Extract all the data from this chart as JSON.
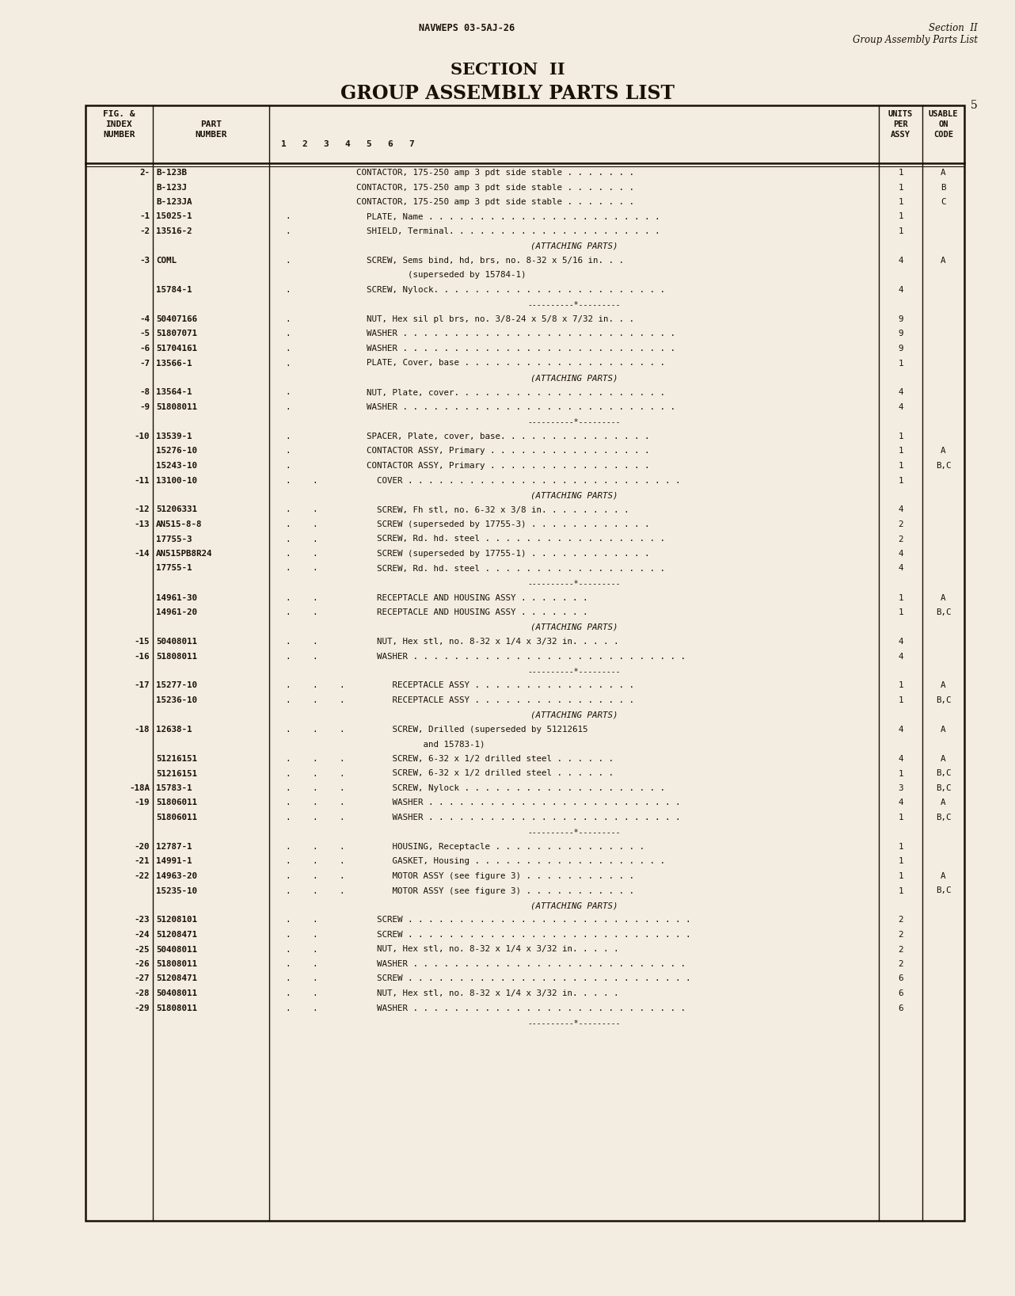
{
  "bg_color": "#f2ede0",
  "text_color": "#1a1005",
  "header_left": "NAVWEPS 03-5AJ-26",
  "header_right_line1": "Section  II",
  "header_right_line2": "Group Assembly Parts List",
  "title_line1": "SECTION  II",
  "title_line2": "GROUP ASSEMBLY PARTS LIST",
  "page_number": "5",
  "rows": [
    {
      "index": "2-",
      "part": "B-123B",
      "dot1": "",
      "dot2": "",
      "dot3": "",
      "description": "CONTACTOR, 175-250 amp 3 pdt side stable . . . . . . .",
      "units": "1",
      "code": "A"
    },
    {
      "index": "",
      "part": "B-123J",
      "dot1": "",
      "dot2": "",
      "dot3": "",
      "description": "CONTACTOR, 175-250 amp 3 pdt side stable . . . . . . .",
      "units": "1",
      "code": "B"
    },
    {
      "index": "",
      "part": "B-123JA",
      "dot1": "",
      "dot2": "",
      "dot3": "",
      "description": "CONTACTOR, 175-250 amp 3 pdt side stable . . . . . . .",
      "units": "1",
      "code": "C"
    },
    {
      "index": "-1",
      "part": "15025-1",
      "dot1": ".",
      "dot2": "",
      "dot3": "",
      "description": "  PLATE, Name . . . . . . . . . . . . . . . . . . . . . . .",
      "units": "1",
      "code": ""
    },
    {
      "index": "-2",
      "part": "13516-2",
      "dot1": ".",
      "dot2": "",
      "dot3": "",
      "description": "  SHIELD, Terminal. . . . . . . . . . . . . . . . . . . . .",
      "units": "1",
      "code": ""
    },
    {
      "index": "",
      "part": "",
      "dot1": "",
      "dot2": "",
      "dot3": "",
      "description": "(ATTACHING PARTS)",
      "units": "",
      "code": "",
      "center": true
    },
    {
      "index": "-3",
      "part": "COML",
      "dot1": ".",
      "dot2": "",
      "dot3": "",
      "description": "  SCREW, Sems bind, hd, brs, no. 8-32 x 5/16 in. . .",
      "units": "4",
      "code": "A"
    },
    {
      "index": "",
      "part": "",
      "dot1": "",
      "dot2": "",
      "dot3": "",
      "description": "          (superseded by 15784-1)",
      "units": "",
      "code": ""
    },
    {
      "index": "",
      "part": "15784-1",
      "dot1": ".",
      "dot2": "",
      "dot3": "",
      "description": "  SCREW, Nylock. . . . . . . . . . . . . . . . . . . . . . .",
      "units": "4",
      "code": ""
    },
    {
      "index": "",
      "part": "",
      "dot1": "",
      "dot2": "",
      "dot3": "",
      "description": "",
      "units": "",
      "code": "",
      "separator": true
    },
    {
      "index": "-4",
      "part": "50407166",
      "dot1": ".",
      "dot2": "",
      "dot3": "",
      "description": "  NUT, Hex sil pl brs, no. 3/8-24 x 5/8 x 7/32 in. . .",
      "units": "9",
      "code": ""
    },
    {
      "index": "-5",
      "part": "51807071",
      "dot1": ".",
      "dot2": "",
      "dot3": "",
      "description": "  WASHER . . . . . . . . . . . . . . . . . . . . . . . . . . .",
      "units": "9",
      "code": ""
    },
    {
      "index": "-6",
      "part": "51704161",
      "dot1": ".",
      "dot2": "",
      "dot3": "",
      "description": "  WASHER . . . . . . . . . . . . . . . . . . . . . . . . . . .",
      "units": "9",
      "code": ""
    },
    {
      "index": "-7",
      "part": "13566-1",
      "dot1": ".",
      "dot2": "",
      "dot3": "",
      "description": "  PLATE, Cover, base . . . . . . . . . . . . . . . . . . . .",
      "units": "1",
      "code": ""
    },
    {
      "index": "",
      "part": "",
      "dot1": "",
      "dot2": "",
      "dot3": "",
      "description": "(ATTACHING PARTS)",
      "units": "",
      "code": "",
      "center": true
    },
    {
      "index": "-8",
      "part": "13564-1",
      "dot1": ".",
      "dot2": "",
      "dot3": "",
      "description": "  NUT, Plate, cover. . . . . . . . . . . . . . . . . . . . .",
      "units": "4",
      "code": ""
    },
    {
      "index": "-9",
      "part": "51808011",
      "dot1": ".",
      "dot2": "",
      "dot3": "",
      "description": "  WASHER . . . . . . . . . . . . . . . . . . . . . . . . . . .",
      "units": "4",
      "code": ""
    },
    {
      "index": "",
      "part": "",
      "dot1": "",
      "dot2": "",
      "dot3": "",
      "description": "",
      "units": "",
      "code": "",
      "separator": true
    },
    {
      "index": "-10",
      "part": "13539-1",
      "dot1": ".",
      "dot2": "",
      "dot3": "",
      "description": "  SPACER, Plate, cover, base. . . . . . . . . . . . . . .",
      "units": "1",
      "code": ""
    },
    {
      "index": "",
      "part": "15276-10",
      "dot1": ".",
      "dot2": "",
      "dot3": "",
      "description": "  CONTACTOR ASSY, Primary . . . . . . . . . . . . . . . .",
      "units": "1",
      "code": "A"
    },
    {
      "index": "",
      "part": "15243-10",
      "dot1": ".",
      "dot2": "",
      "dot3": "",
      "description": "  CONTACTOR ASSY, Primary . . . . . . . . . . . . . . . .",
      "units": "1",
      "code": "B,C"
    },
    {
      "index": "-11",
      "part": "13100-10",
      "dot1": ".",
      "dot2": ".",
      "dot3": "",
      "description": "    COVER . . . . . . . . . . . . . . . . . . . . . . . . . . .",
      "units": "1",
      "code": ""
    },
    {
      "index": "",
      "part": "",
      "dot1": "",
      "dot2": "",
      "dot3": "",
      "description": "(ATTACHING PARTS)",
      "units": "",
      "code": "",
      "center": true
    },
    {
      "index": "-12",
      "part": "51206331",
      "dot1": ".",
      "dot2": ".",
      "dot3": "",
      "description": "    SCREW, Fh stl, no. 6-32 x 3/8 in. . . . . . . . .",
      "units": "4",
      "code": ""
    },
    {
      "index": "-13",
      "part": "AN515-8-8",
      "dot1": ".",
      "dot2": ".",
      "dot3": "",
      "description": "    SCREW (superseded by 17755-3) . . . . . . . . . . . .",
      "units": "2",
      "code": ""
    },
    {
      "index": "",
      "part": "17755-3",
      "dot1": ".",
      "dot2": ".",
      "dot3": "",
      "description": "    SCREW, Rd. hd. steel . . . . . . . . . . . . . . . . . .",
      "units": "2",
      "code": ""
    },
    {
      "index": "-14",
      "part": "AN515PB8R24",
      "dot1": ".",
      "dot2": ".",
      "dot3": "",
      "description": "    SCREW (superseded by 17755-1) . . . . . . . . . . . .",
      "units": "4",
      "code": ""
    },
    {
      "index": "",
      "part": "17755-1",
      "dot1": ".",
      "dot2": ".",
      "dot3": "",
      "description": "    SCREW, Rd. hd. steel . . . . . . . . . . . . . . . . . .",
      "units": "4",
      "code": ""
    },
    {
      "index": "",
      "part": "",
      "dot1": "",
      "dot2": "",
      "dot3": "",
      "description": "",
      "units": "",
      "code": "",
      "separator": true
    },
    {
      "index": "",
      "part": "14961-30",
      "dot1": ".",
      "dot2": ".",
      "dot3": "",
      "description": "    RECEPTACLE AND HOUSING ASSY . . . . . . .",
      "units": "1",
      "code": "A"
    },
    {
      "index": "",
      "part": "14961-20",
      "dot1": ".",
      "dot2": ".",
      "dot3": "",
      "description": "    RECEPTACLE AND HOUSING ASSY . . . . . . .",
      "units": "1",
      "code": "B,C"
    },
    {
      "index": "",
      "part": "",
      "dot1": "",
      "dot2": "",
      "dot3": "",
      "description": "(ATTACHING PARTS)",
      "units": "",
      "code": "",
      "center": true
    },
    {
      "index": "-15",
      "part": "50408011",
      "dot1": ".",
      "dot2": ".",
      "dot3": "",
      "description": "    NUT, Hex stl, no. 8-32 x 1/4 x 3/32 in. . . . .",
      "units": "4",
      "code": ""
    },
    {
      "index": "-16",
      "part": "51808011",
      "dot1": ".",
      "dot2": ".",
      "dot3": "",
      "description": "    WASHER . . . . . . . . . . . . . . . . . . . . . . . . . . .",
      "units": "4",
      "code": ""
    },
    {
      "index": "",
      "part": "",
      "dot1": "",
      "dot2": "",
      "dot3": "",
      "description": "",
      "units": "",
      "code": "",
      "separator": true
    },
    {
      "index": "-17",
      "part": "15277-10",
      "dot1": ".",
      "dot2": ".",
      "dot3": ".",
      "description": "       RECEPTACLE ASSY . . . . . . . . . . . . . . . .",
      "units": "1",
      "code": "A"
    },
    {
      "index": "",
      "part": "15236-10",
      "dot1": ".",
      "dot2": ".",
      "dot3": ".",
      "description": "       RECEPTACLE ASSY . . . . . . . . . . . . . . . .",
      "units": "1",
      "code": "B,C"
    },
    {
      "index": "",
      "part": "",
      "dot1": "",
      "dot2": "",
      "dot3": "",
      "description": "(ATTACHING PARTS)",
      "units": "",
      "code": "",
      "center": true
    },
    {
      "index": "-18",
      "part": "12638-1",
      "dot1": ".",
      "dot2": ".",
      "dot3": ".",
      "description": "       SCREW, Drilled (superseded by 51212615",
      "units": "4",
      "code": "A"
    },
    {
      "index": "",
      "part": "",
      "dot1": "",
      "dot2": "",
      "dot3": "",
      "description": "             and 15783-1)",
      "units": "",
      "code": ""
    },
    {
      "index": "",
      "part": "51216151",
      "dot1": ".",
      "dot2": ".",
      "dot3": ".",
      "description": "       SCREW, 6-32 x 1/2 drilled steel . . . . . .",
      "units": "4",
      "code": "A"
    },
    {
      "index": "",
      "part": "51216151",
      "dot1": ".",
      "dot2": ".",
      "dot3": ".",
      "description": "       SCREW, 6-32 x 1/2 drilled steel . . . . . .",
      "units": "1",
      "code": "B,C"
    },
    {
      "index": "-18A",
      "part": "15783-1",
      "dot1": ".",
      "dot2": ".",
      "dot3": ".",
      "description": "       SCREW, Nylock . . . . . . . . . . . . . . . . . . . .",
      "units": "3",
      "code": "B,C"
    },
    {
      "index": "-19",
      "part": "51806011",
      "dot1": ".",
      "dot2": ".",
      "dot3": ".",
      "description": "       WASHER . . . . . . . . . . . . . . . . . . . . . . . . .",
      "units": "4",
      "code": "A"
    },
    {
      "index": "",
      "part": "51806011",
      "dot1": ".",
      "dot2": ".",
      "dot3": ".",
      "description": "       WASHER . . . . . . . . . . . . . . . . . . . . . . . . .",
      "units": "1",
      "code": "B,C"
    },
    {
      "index": "",
      "part": "",
      "dot1": "",
      "dot2": "",
      "dot3": "",
      "description": "",
      "units": "",
      "code": "",
      "separator": true
    },
    {
      "index": "-20",
      "part": "12787-1",
      "dot1": ".",
      "dot2": ".",
      "dot3": ".",
      "description": "       HOUSING, Receptacle . . . . . . . . . . . . . . .",
      "units": "1",
      "code": ""
    },
    {
      "index": "-21",
      "part": "14991-1",
      "dot1": ".",
      "dot2": ".",
      "dot3": ".",
      "description": "       GASKET, Housing . . . . . . . . . . . . . . . . . . .",
      "units": "1",
      "code": ""
    },
    {
      "index": "-22",
      "part": "14963-20",
      "dot1": ".",
      "dot2": ".",
      "dot3": ".",
      "description": "       MOTOR ASSY (see figure 3) . . . . . . . . . . .",
      "units": "1",
      "code": "A"
    },
    {
      "index": "",
      "part": "15235-10",
      "dot1": ".",
      "dot2": ".",
      "dot3": ".",
      "description": "       MOTOR ASSY (see figure 3) . . . . . . . . . . .",
      "units": "1",
      "code": "B,C"
    },
    {
      "index": "",
      "part": "",
      "dot1": "",
      "dot2": "",
      "dot3": "",
      "description": "(ATTACHING PARTS)",
      "units": "",
      "code": "",
      "center": true
    },
    {
      "index": "-23",
      "part": "51208101",
      "dot1": ".",
      "dot2": ".",
      "dot3": "",
      "description": "    SCREW . . . . . . . . . . . . . . . . . . . . . . . . . . . .",
      "units": "2",
      "code": ""
    },
    {
      "index": "-24",
      "part": "51208471",
      "dot1": ".",
      "dot2": ".",
      "dot3": "",
      "description": "    SCREW . . . . . . . . . . . . . . . . . . . . . . . . . . . .",
      "units": "2",
      "code": ""
    },
    {
      "index": "-25",
      "part": "50408011",
      "dot1": ".",
      "dot2": ".",
      "dot3": "",
      "description": "    NUT, Hex stl, no. 8-32 x 1/4 x 3/32 in. . . . .",
      "units": "2",
      "code": ""
    },
    {
      "index": "-26",
      "part": "51808011",
      "dot1": ".",
      "dot2": ".",
      "dot3": "",
      "description": "    WASHER . . . . . . . . . . . . . . . . . . . . . . . . . . .",
      "units": "2",
      "code": ""
    },
    {
      "index": "-27",
      "part": "51208471",
      "dot1": ".",
      "dot2": ".",
      "dot3": "",
      "description": "    SCREW . . . . . . . . . . . . . . . . . . . . . . . . . . . .",
      "units": "6",
      "code": ""
    },
    {
      "index": "-28",
      "part": "50408011",
      "dot1": ".",
      "dot2": ".",
      "dot3": "",
      "description": "    NUT, Hex stl, no. 8-32 x 1/4 x 3/32 in. . . . .",
      "units": "6",
      "code": ""
    },
    {
      "index": "-29",
      "part": "51808011",
      "dot1": ".",
      "dot2": ".",
      "dot3": "",
      "description": "    WASHER . . . . . . . . . . . . . . . . . . . . . . . . . . .",
      "units": "6",
      "code": ""
    },
    {
      "index": "",
      "part": "",
      "dot1": "",
      "dot2": "",
      "dot3": "",
      "description": "",
      "units": "",
      "code": "",
      "separator": true
    }
  ]
}
